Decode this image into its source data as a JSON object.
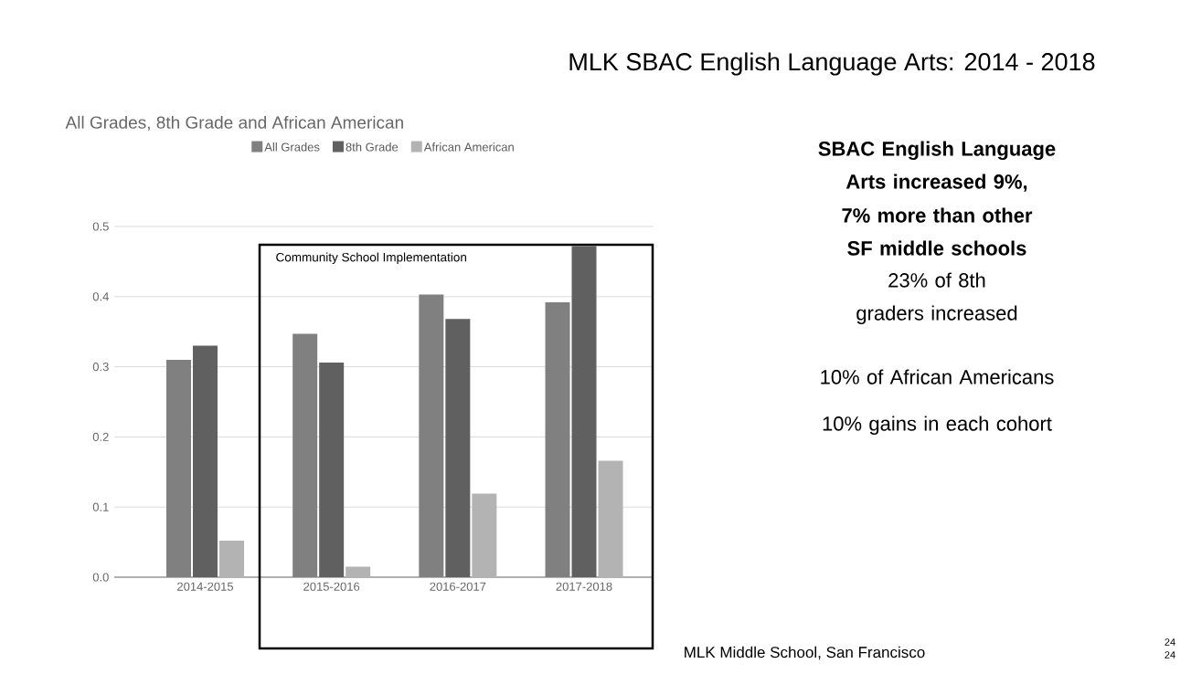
{
  "chart_data": {
    "type": "bar",
    "title": "MLK SBAC English Language Arts: 2014 - 2018",
    "subtitle": "All Grades, 8th Grade and African American",
    "categories": [
      "2014-2015",
      "2015-2016",
      "2016-2017",
      "2017-2018"
    ],
    "series": [
      {
        "name": "All Grades",
        "color": "#808080",
        "values": [
          0.31,
          0.347,
          0.403,
          0.392
        ]
      },
      {
        "name": "8th Grade",
        "color": "#606060",
        "values": [
          0.33,
          0.306,
          0.368,
          0.472
        ]
      },
      {
        "name": "African American",
        "color": "#b3b3b3",
        "values": [
          0.052,
          0.015,
          0.119,
          0.166
        ]
      }
    ],
    "ylim": [
      0,
      0.5
    ],
    "yticks": [
      {
        "value": 0,
        "label": "0.0"
      },
      0.1,
      0.2,
      0.3,
      0.4,
      0.5
    ],
    "grid": "y",
    "legend": "top",
    "annotations": [
      "Community School Implementation",
      "SBAC English Language Arts increased 9%,",
      "7% more than other SF middle schools",
      "23% of 8th graders increased",
      "10% of African Americans",
      "10% gains in each cohort",
      "MLK Middle School, San Francisco",
      "24",
      "24"
    ]
  }
}
